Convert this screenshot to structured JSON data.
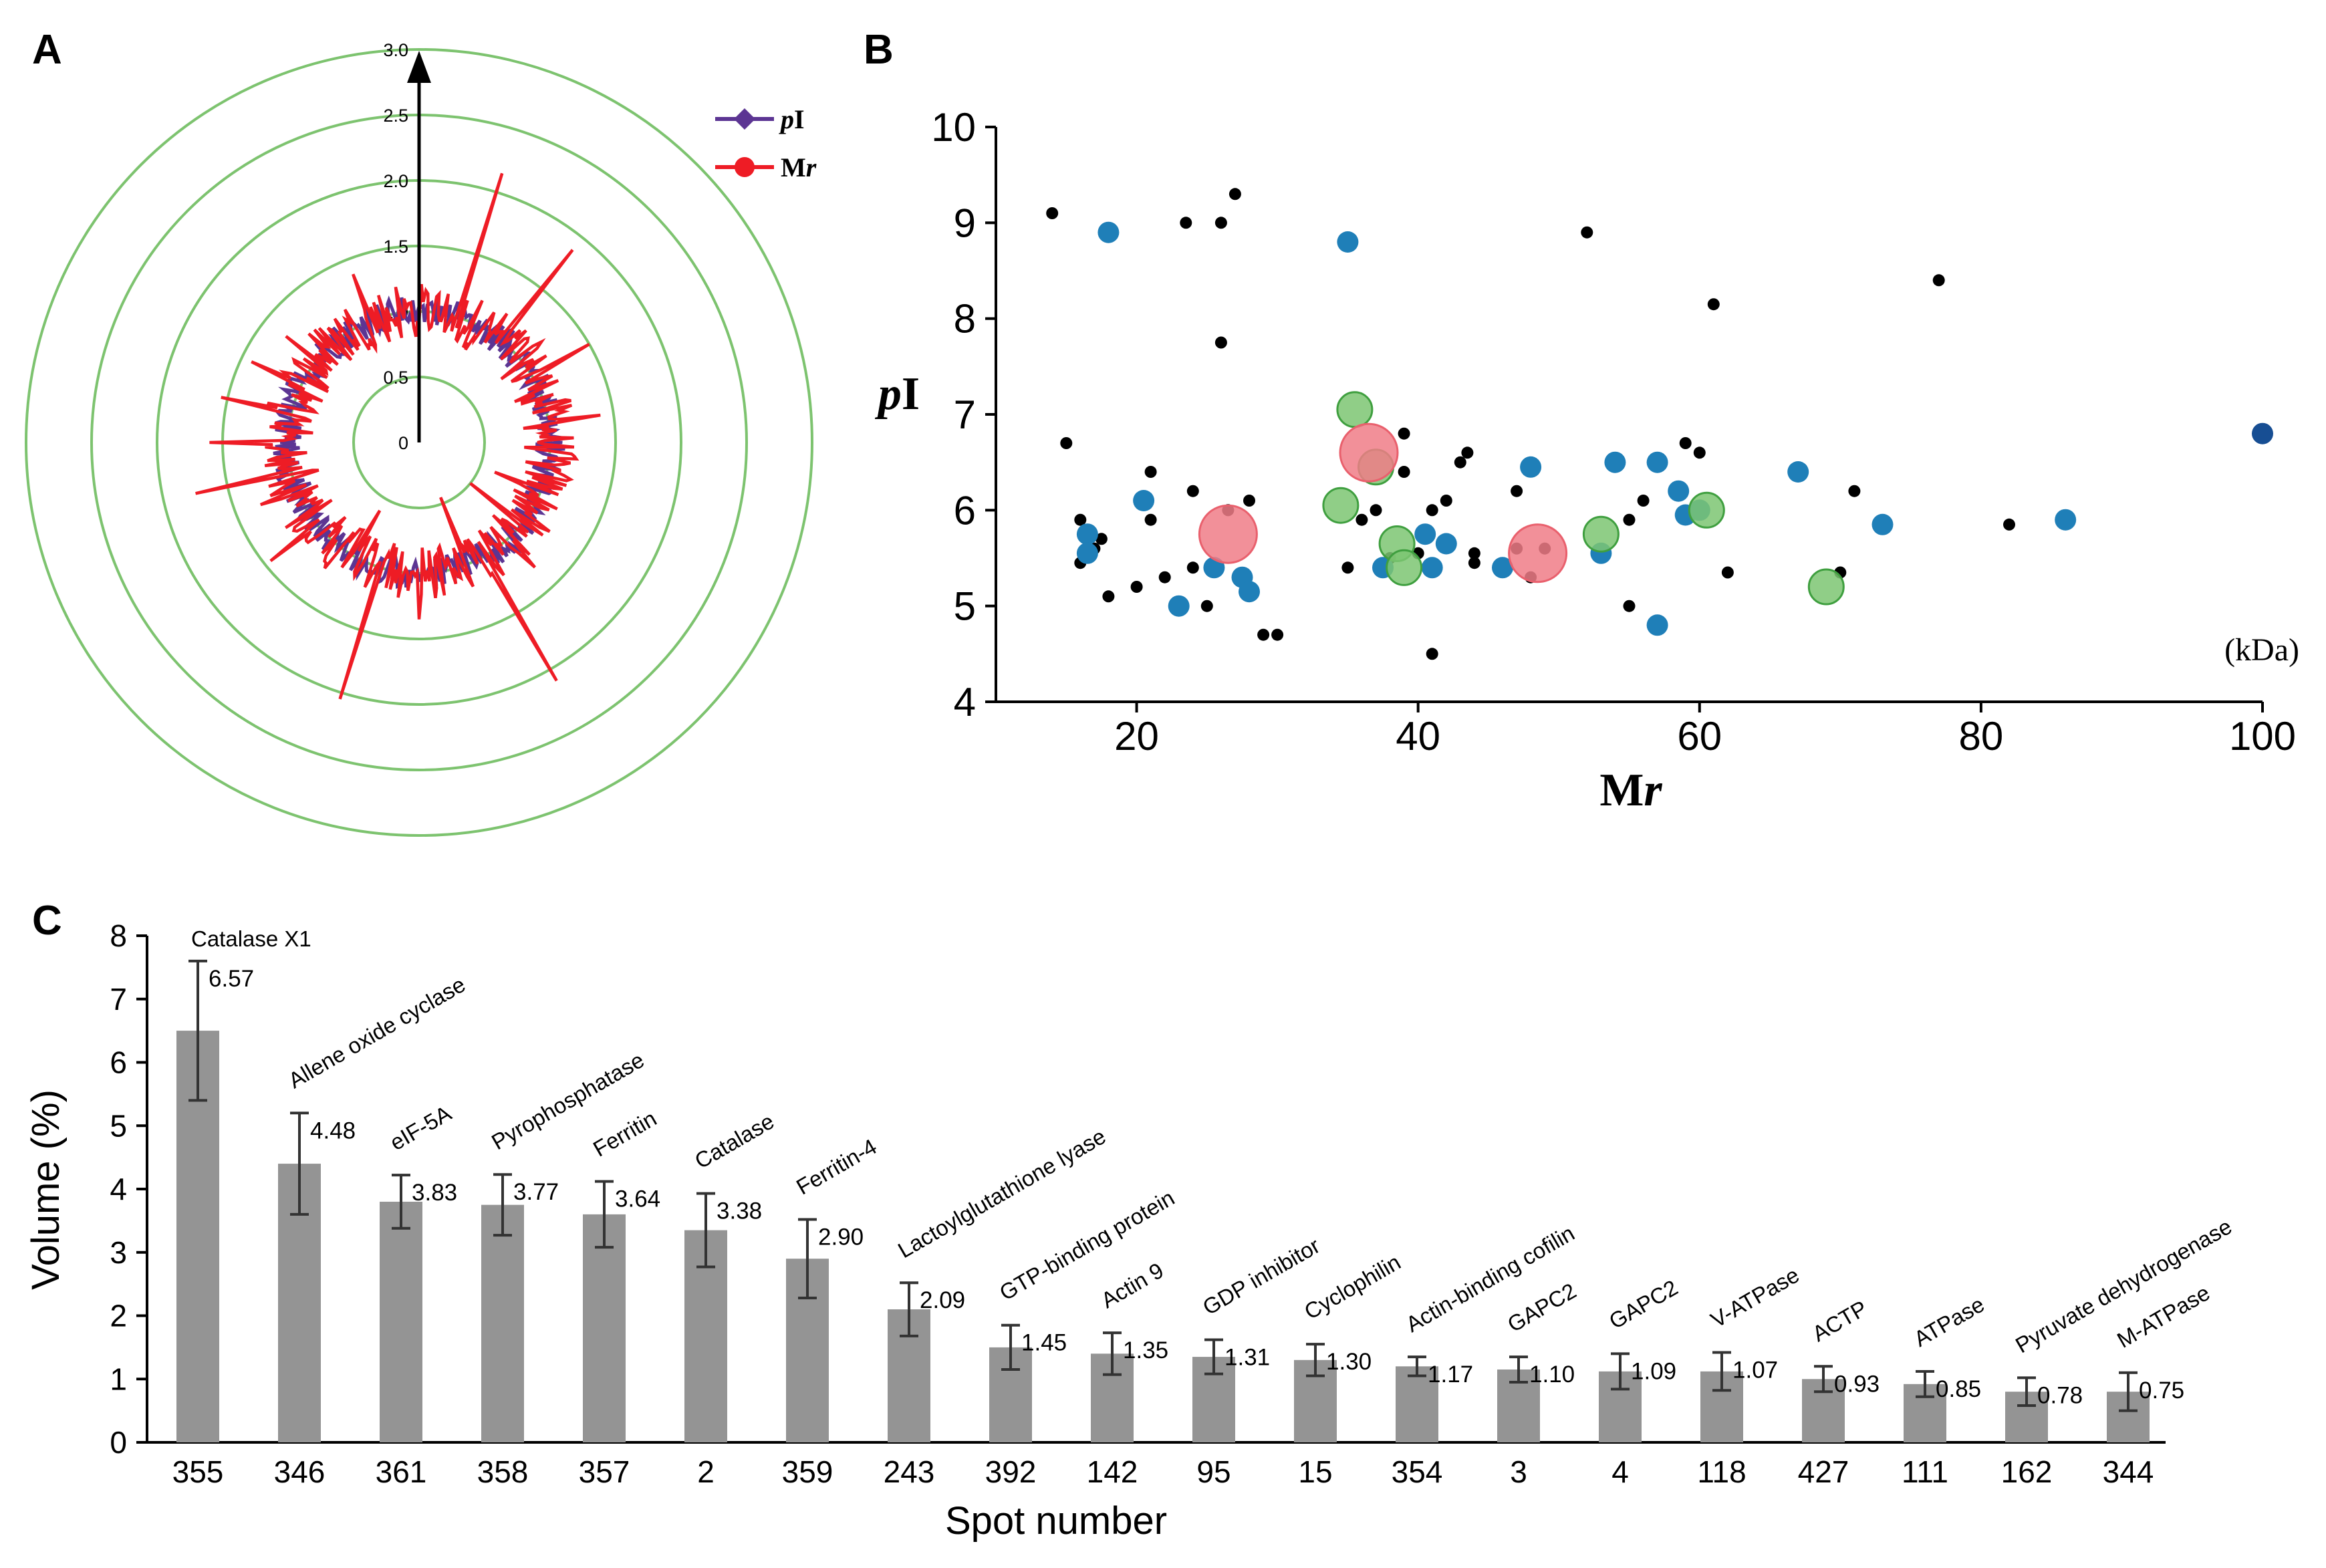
{
  "panels": {
    "a": "A",
    "b": "B",
    "c": "C"
  },
  "colors": {
    "pI": "#5c3593",
    "Mr": "#ee1c25",
    "ring": "#7dc36f",
    "blue": "#1f7fb8",
    "darkblue": "#174e93",
    "green": "#7cc672",
    "greenEdge": "#3f9f3f",
    "pink": "#f07d87",
    "bar": "#949494",
    "black": "#000000"
  },
  "chart_data": [
    {
      "type": "radar",
      "title": "",
      "radial_ticks": [
        "0",
        "0.5",
        "1.0",
        "1.5",
        "2.0",
        "2.5",
        "3.0"
      ],
      "radial_range": [
        0,
        3.0
      ],
      "legend": [
        {
          "label_italic": "p",
          "label_regular": "I",
          "series": "pI",
          "marker": "diamond"
        },
        {
          "label_regular": "M",
          "label_italic": "r",
          "series": "Mr",
          "marker": "circle"
        }
      ],
      "legend_position": "top-right",
      "series": [
        {
          "name": "pI",
          "description": "ratios near 1.0 for all spots",
          "range": [
            0.85,
            1.15
          ]
        },
        {
          "name": "Mr",
          "description": "ratios mostly near 1.0 with several outlier spikes",
          "range": [
            0.3,
            2.2
          ]
        }
      ]
    },
    {
      "type": "scatter",
      "xlabel_regular": "M",
      "xlabel_italic": "r",
      "ylabel_italic": "p",
      "ylabel_regular": "I",
      "unit_label": "(kDa)",
      "xlim": [
        10,
        100
      ],
      "ylim": [
        4,
        10
      ],
      "xticks": [
        "20",
        "40",
        "60",
        "80",
        "100"
      ],
      "yticks": [
        "4",
        "5",
        "6",
        "7",
        "8",
        "9",
        "10"
      ],
      "series": [
        {
          "name": "black",
          "size": "small",
          "points": [
            [
              14,
              9.1
            ],
            [
              15,
              6.7
            ],
            [
              16,
              5.9
            ],
            [
              16,
              5.45
            ],
            [
              17,
              5.6
            ],
            [
              17.5,
              5.7
            ],
            [
              18,
              5.1
            ],
            [
              20,
              5.2
            ],
            [
              21,
              6.4
            ],
            [
              21,
              5.9
            ],
            [
              22,
              5.3
            ],
            [
              23.5,
              9.0
            ],
            [
              24,
              5.4
            ],
            [
              24,
              6.2
            ],
            [
              25,
              5.0
            ],
            [
              26,
              9.0
            ],
            [
              26,
              7.75
            ],
            [
              26.5,
              6.0
            ],
            [
              27,
              9.3
            ],
            [
              28,
              6.1
            ],
            [
              29,
              4.7
            ],
            [
              30,
              4.7
            ],
            [
              35,
              5.4
            ],
            [
              36,
              5.9
            ],
            [
              37,
              6.0
            ],
            [
              38,
              5.5
            ],
            [
              39,
              6.4
            ],
            [
              39,
              6.8
            ],
            [
              40,
              5.55
            ],
            [
              41,
              6.0
            ],
            [
              41,
              4.5
            ],
            [
              42,
              6.1
            ],
            [
              43,
              6.5
            ],
            [
              43.5,
              6.6
            ],
            [
              44,
              5.55
            ],
            [
              44,
              5.45
            ],
            [
              47,
              6.2
            ],
            [
              47,
              5.6
            ],
            [
              48,
              5.3
            ],
            [
              49,
              5.6
            ],
            [
              52,
              8.9
            ],
            [
              55,
              5.9
            ],
            [
              55,
              5.0
            ],
            [
              56,
              6.1
            ],
            [
              59,
              6.7
            ],
            [
              60,
              6.6
            ],
            [
              61,
              8.15
            ],
            [
              62,
              5.35
            ],
            [
              70,
              5.35
            ],
            [
              71,
              6.2
            ],
            [
              77,
              8.4
            ],
            [
              82,
              5.85
            ]
          ]
        },
        {
          "name": "blue",
          "size": "medium",
          "points": [
            [
              18,
              8.9
            ],
            [
              16.5,
              5.75
            ],
            [
              16.5,
              5.55
            ],
            [
              20.5,
              6.1
            ],
            [
              23,
              5.0
            ],
            [
              25.5,
              5.4
            ],
            [
              27.5,
              5.3
            ],
            [
              28,
              5.15
            ],
            [
              35,
              8.8
            ],
            [
              37.5,
              5.4
            ],
            [
              40.5,
              5.75
            ],
            [
              41,
              5.4
            ],
            [
              42,
              5.65
            ],
            [
              46,
              5.4
            ],
            [
              48,
              6.45
            ],
            [
              53,
              5.55
            ],
            [
              54,
              6.5
            ],
            [
              57,
              6.5
            ],
            [
              57,
              4.8
            ],
            [
              58.5,
              6.2
            ],
            [
              59,
              5.95
            ],
            [
              60,
              6.0
            ],
            [
              67,
              6.4
            ],
            [
              73,
              5.85
            ],
            [
              86,
              5.9
            ]
          ]
        },
        {
          "name": "darkblue",
          "size": "medium",
          "points": [
            [
              100,
              6.8
            ]
          ]
        },
        {
          "name": "green",
          "size": "large",
          "points": [
            [
              35.5,
              7.05
            ],
            [
              34.5,
              6.05
            ],
            [
              37,
              6.45
            ],
            [
              38.5,
              5.65
            ],
            [
              39,
              5.4
            ],
            [
              53,
              5.75
            ],
            [
              60.5,
              6.0
            ],
            [
              69,
              5.2
            ]
          ]
        },
        {
          "name": "pink",
          "size": "xlarge",
          "points": [
            [
              26.5,
              5.75
            ],
            [
              36.5,
              6.6
            ],
            [
              48.5,
              5.55
            ]
          ]
        }
      ]
    },
    {
      "type": "bar",
      "xlabel": "Spot number",
      "ylabel": "Volume (%)",
      "ylim": [
        0,
        8
      ],
      "yticks": [
        "0",
        "1",
        "2",
        "3",
        "4",
        "5",
        "6",
        "7",
        "8"
      ],
      "categories": [
        "355",
        "346",
        "361",
        "358",
        "357",
        "2",
        "359",
        "243",
        "392",
        "142",
        "95",
        "15",
        "354",
        "3",
        "4",
        "118",
        "427",
        "111",
        "162",
        "344"
      ],
      "proteins": [
        "Catalase X1",
        "Allene oxide cyclase",
        "eIF-5A",
        "Pyrophosphatase",
        "Ferritin",
        "Catalase",
        "Ferritin-4",
        "Lactoylglutathione lyase",
        "GTP-binding protein",
        "Actin 9",
        "GDP inhibitor",
        "Cyclophilin",
        "Actin-binding cofilin",
        "GAPC2",
        "GAPC2",
        "V-ATPase",
        "ACTP",
        "ATPase",
        "Pyruvate dehydrogenase",
        "M-ATPase"
      ],
      "ratio_labels": [
        "6.57",
        "4.48",
        "3.83",
        "3.77",
        "3.64",
        "3.38",
        "2.90",
        "2.09",
        "1.45",
        "1.35",
        "1.31",
        "1.30",
        "1.17",
        "1.10",
        "1.09",
        "1.07",
        "0.93",
        "0.85",
        "0.78",
        "0.75"
      ],
      "values": [
        6.5,
        4.4,
        3.8,
        3.75,
        3.6,
        3.35,
        2.9,
        2.1,
        1.5,
        1.4,
        1.35,
        1.3,
        1.2,
        1.15,
        1.12,
        1.12,
        1.0,
        0.92,
        0.8,
        0.8
      ],
      "errors": [
        1.1,
        0.8,
        0.42,
        0.48,
        0.52,
        0.58,
        0.62,
        0.42,
        0.35,
        0.33,
        0.27,
        0.25,
        0.15,
        0.2,
        0.28,
        0.3,
        0.2,
        0.2,
        0.22,
        0.3
      ]
    }
  ]
}
